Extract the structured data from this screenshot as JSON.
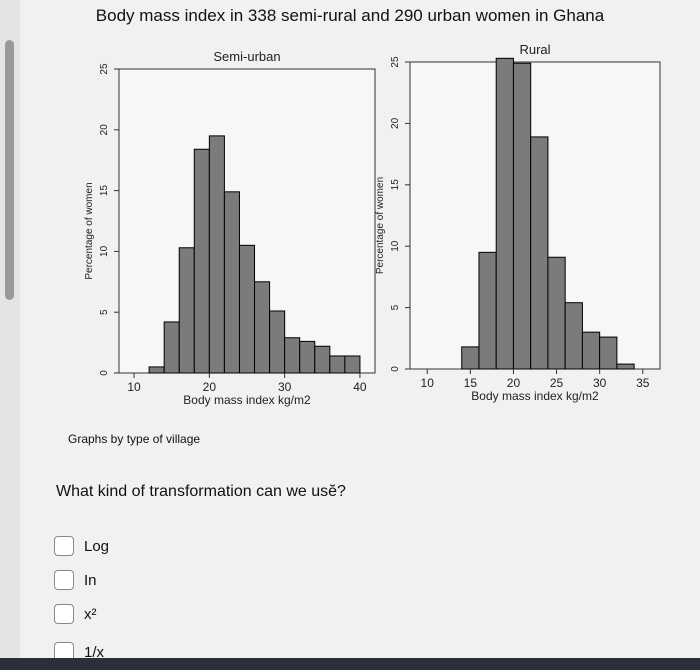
{
  "figure_title": "Body mass index in 338 semi-rural and 290 urban women in Ghana",
  "footnote": "Graphs by type of village",
  "question": "What kind of transformation can we usĕ?",
  "options": [
    "Log",
    "In",
    "x²",
    "1/x"
  ],
  "colors": {
    "bar_fill": "#7b7b7b",
    "bar_stroke": "#000000",
    "page_bg": "#f1f1f1"
  },
  "chart_data": [
    {
      "type": "bar",
      "title": "Semi-urban",
      "xlabel": "Body mass index kg/m2",
      "ylabel": "Percentage of women",
      "xlim": [
        8,
        42
      ],
      "ylim": [
        0,
        25
      ],
      "xticks": [
        10,
        20,
        30,
        40
      ],
      "yticks": [
        0,
        5,
        10,
        15,
        20,
        25
      ],
      "bin_edges": [
        12,
        14,
        16,
        18,
        20,
        22,
        24,
        26,
        28,
        30,
        32,
        34,
        36,
        38,
        40
      ],
      "values": [
        0.5,
        4.2,
        10.3,
        18.4,
        19.5,
        14.9,
        10.5,
        7.5,
        5.1,
        2.9,
        2.6,
        2.2,
        1.4,
        1.4
      ]
    },
    {
      "type": "bar",
      "title": "Rural",
      "xlabel": "Body mass index kg/m2",
      "ylabel": "Percentage of women",
      "xlim": [
        8,
        37
      ],
      "ylim": [
        0,
        25
      ],
      "xticks": [
        10,
        15,
        20,
        25,
        30,
        35
      ],
      "yticks": [
        0,
        5,
        10,
        15,
        20,
        25
      ],
      "bin_edges": [
        14,
        16,
        18,
        20,
        22,
        24,
        26,
        28,
        30,
        32,
        34
      ],
      "values": [
        1.8,
        9.5,
        25.3,
        24.9,
        18.9,
        9.1,
        5.4,
        3.0,
        2.6,
        0.4
      ]
    }
  ]
}
